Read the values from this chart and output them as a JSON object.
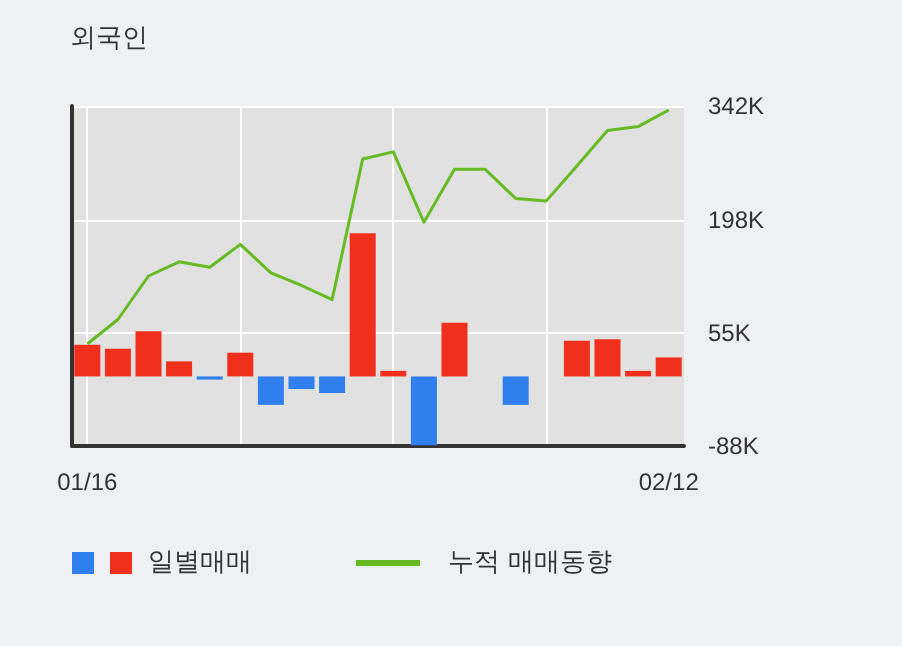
{
  "chart_data": {
    "type": "bar",
    "title": "외국인",
    "categories": [
      "01/16",
      null,
      null,
      null,
      null,
      null,
      null,
      null,
      null,
      null,
      null,
      null,
      null,
      null,
      null,
      null,
      null,
      null,
      null,
      "02/12"
    ],
    "series": [
      {
        "name": "일별매매",
        "colors": [
          "#f0301c",
          "#f0301c",
          "#f0301c",
          "#f0301c",
          "#2f80ee",
          "#f0301c",
          "#2f80ee",
          "#2f80ee",
          "#2f80ee",
          "#f0301c",
          "#f0301c",
          "#2f80ee",
          "#f0301c",
          "#f0301c",
          "#2f80ee",
          "#f0301c",
          "#f0301c",
          "#f0301c",
          "#f0301c",
          "#f0301c"
        ],
        "values": [
          40000,
          35000,
          57000,
          19000,
          -4000,
          30000,
          -36000,
          -16000,
          -21000,
          181000,
          7000,
          -87000,
          68000,
          0,
          -36000,
          0,
          45000,
          47000,
          7000,
          24000
        ]
      },
      {
        "name": "누적 매매동향",
        "type": "line",
        "color": "#66bb22",
        "values": [
          41000,
          72000,
          127000,
          145000,
          138000,
          167000,
          131000,
          115000,
          97000,
          275000,
          284000,
          195000,
          262000,
          262000,
          225000,
          222000,
          266000,
          311000,
          316000,
          337000
        ]
      }
    ],
    "ylim": [
      -88000,
      342000
    ],
    "yticks": [
      {
        "value": -88000,
        "label": "-88K"
      },
      {
        "value": 55000,
        "label": "55K"
      },
      {
        "value": 198000,
        "label": "198K"
      },
      {
        "value": 342000,
        "label": "342K"
      }
    ],
    "grid": true,
    "legend": "bottom",
    "marker": "none"
  }
}
